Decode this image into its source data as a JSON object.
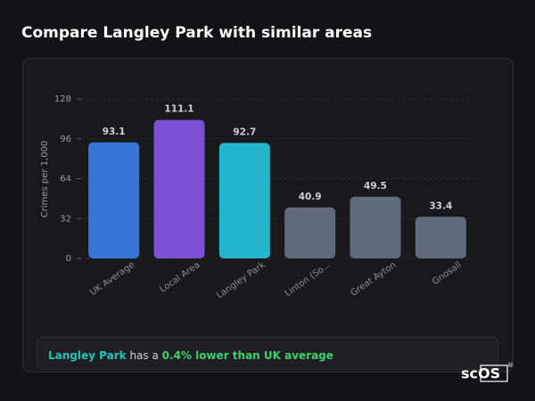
{
  "header": {
    "title": "Compare Langley Park with similar areas"
  },
  "chart_data": {
    "type": "bar",
    "y_label": "Crimes per 1,000",
    "categories": [
      "UK Average",
      "Local Area",
      "Langley Park",
      "Linton (So...",
      "Great Ayton",
      "Gnosall"
    ],
    "values": [
      93.1,
      111.1,
      92.7,
      40.9,
      49.5,
      33.4
    ],
    "colors": [
      "#3575d8",
      "#7b4fd6",
      "#22b5cc",
      "#5f6a7a",
      "#5f6a7a",
      "#5f6a7a"
    ],
    "ylim": [
      0,
      128
    ],
    "yticks": [
      0,
      32,
      64,
      96,
      128
    ],
    "grid": true
  },
  "footer": {
    "area": "Langley Park",
    "mid": "has a",
    "highlight": "0.4% lower than UK average"
  },
  "logo": {
    "text": "scOS",
    "mark": "®"
  }
}
